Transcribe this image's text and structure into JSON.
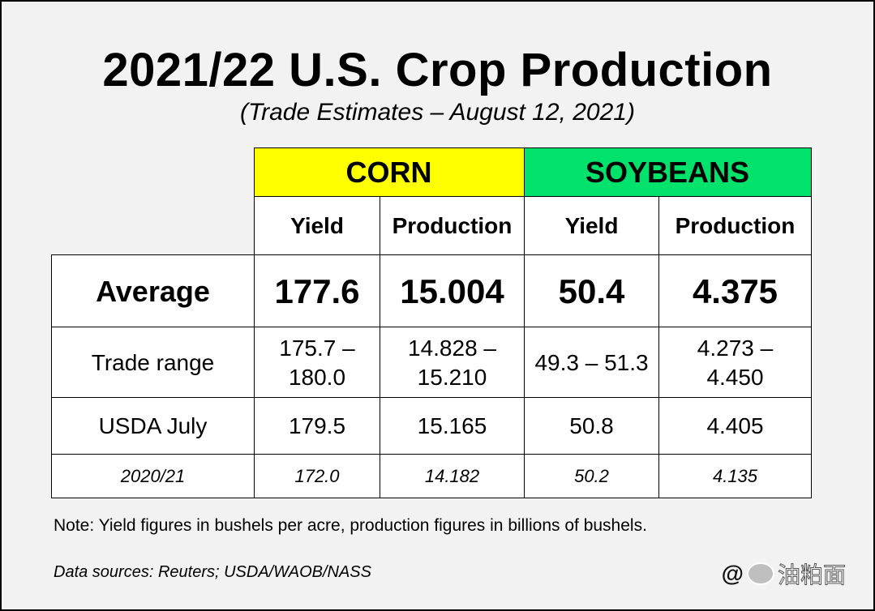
{
  "title": "2021/22 U.S. Crop Production",
  "subtitle": "(Trade Estimates – August 12, 2021)",
  "table": {
    "groups": {
      "corn": "CORN",
      "soybeans": "SOYBEANS"
    },
    "subheaders": {
      "yield": "Yield",
      "production": "Production"
    },
    "rows": [
      {
        "label": "Average",
        "values": [
          "177.6",
          "15.004",
          "50.4",
          "4.375"
        ]
      },
      {
        "label": "Trade range",
        "values": [
          "175.7 – 180.0",
          "14.828 – 15.210",
          "49.3 – 51.3",
          "4.273 – 4.450"
        ]
      },
      {
        "label": "USDA July",
        "values": [
          "179.5",
          "15.165",
          "50.8",
          "4.405"
        ]
      },
      {
        "label": "2020/21",
        "values": [
          "172.0",
          "14.182",
          "50.2",
          "4.135"
        ]
      }
    ]
  },
  "note": "Note: Yield figures in bushels per acre, production figures in billions of bushels.",
  "sources": "Data sources: Reuters; USDA/WAOB/NASS",
  "watermark": {
    "prefix": "@",
    "text": "油粕面"
  },
  "colors": {
    "corn_header": "#ffff00",
    "soybeans_header": "#00e26c"
  }
}
